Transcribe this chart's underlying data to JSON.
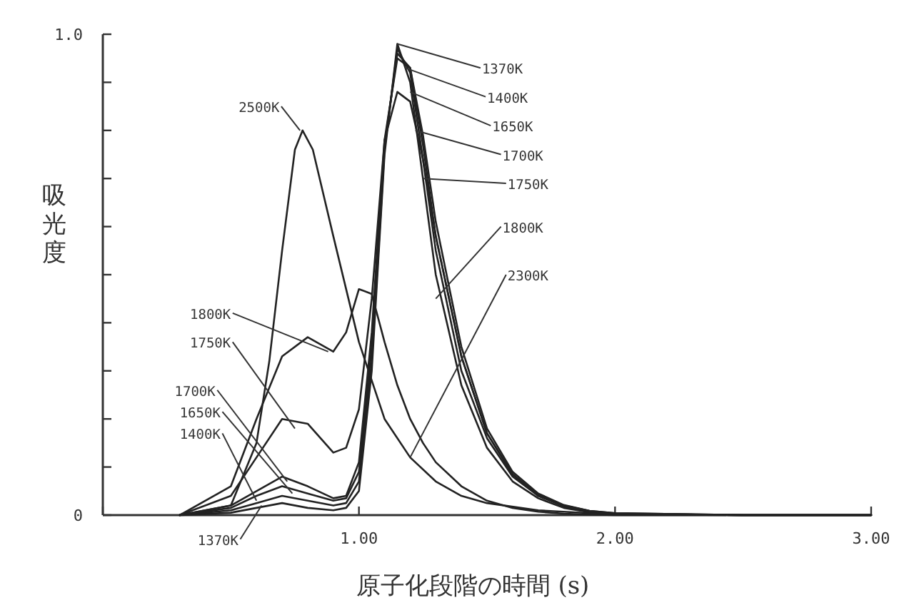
{
  "chart_data": {
    "type": "line",
    "xlabel": "原子化段階の時間 (s)",
    "ylabel": "吸光度",
    "xlim": [
      0,
      3
    ],
    "ylim": [
      0,
      1
    ],
    "xticks": [
      {
        "value": 0,
        "label": null
      },
      {
        "value": 1,
        "label": "1.00"
      },
      {
        "value": 2,
        "label": "2.00"
      },
      {
        "value": 3,
        "label": "3.00"
      }
    ],
    "yticks": [
      {
        "value": 0,
        "label": "0"
      },
      {
        "value": 0.1,
        "label": null
      },
      {
        "value": 0.2,
        "label": null
      },
      {
        "value": 0.3,
        "label": null
      },
      {
        "value": 0.4,
        "label": null
      },
      {
        "value": 0.5,
        "label": null
      },
      {
        "value": 0.6,
        "label": null
      },
      {
        "value": 0.7,
        "label": null
      },
      {
        "value": 0.8,
        "label": null
      },
      {
        "value": 0.9,
        "label": null
      },
      {
        "value": 1,
        "label": "1.0"
      }
    ],
    "grid": false,
    "series": [
      {
        "color": "#222222",
        "x": [
          0.3,
          0.5,
          0.6,
          0.7,
          0.8,
          0.9,
          0.95,
          1.0,
          1.05,
          1.1,
          1.15,
          1.2,
          1.25,
          1.3,
          1.4,
          1.5,
          1.6,
          1.7,
          1.8,
          1.9,
          2.0,
          2.5,
          3.0
        ],
        "values": [
          0,
          0.005,
          0.015,
          0.025,
          0.015,
          0.01,
          0.015,
          0.05,
          0.3,
          0.75,
          0.98,
          0.9,
          0.7,
          0.5,
          0.27,
          0.14,
          0.07,
          0.035,
          0.015,
          0.006,
          0.003,
          0,
          0
        ]
      },
      {
        "color": "#222222",
        "x": [
          0.3,
          0.5,
          0.6,
          0.7,
          0.8,
          0.9,
          0.95,
          1.0,
          1.05,
          1.1,
          1.15,
          1.2,
          1.25,
          1.3,
          1.4,
          1.5,
          1.6,
          1.7,
          1.8,
          1.9,
          2.0,
          2.5,
          3.0
        ],
        "values": [
          0,
          0.01,
          0.025,
          0.04,
          0.03,
          0.02,
          0.025,
          0.07,
          0.32,
          0.76,
          0.97,
          0.92,
          0.74,
          0.55,
          0.3,
          0.16,
          0.08,
          0.04,
          0.018,
          0.008,
          0.003,
          0,
          0
        ]
      },
      {
        "color": "#222222",
        "x": [
          0.3,
          0.5,
          0.6,
          0.7,
          0.8,
          0.9,
          0.95,
          1.0,
          1.05,
          1.1,
          1.15,
          1.2,
          1.25,
          1.3,
          1.4,
          1.5,
          1.6,
          1.7,
          1.8,
          1.9,
          2.0,
          2.5,
          3.0
        ],
        "values": [
          0,
          0.015,
          0.04,
          0.06,
          0.045,
          0.03,
          0.035,
          0.09,
          0.35,
          0.77,
          0.96,
          0.93,
          0.77,
          0.58,
          0.33,
          0.17,
          0.085,
          0.042,
          0.02,
          0.009,
          0.004,
          0,
          0
        ]
      },
      {
        "color": "#222222",
        "x": [
          0.3,
          0.5,
          0.6,
          0.7,
          0.8,
          0.9,
          0.95,
          1.0,
          1.05,
          1.1,
          1.15,
          1.2,
          1.25,
          1.3,
          1.4,
          1.5,
          1.6,
          1.7,
          1.8,
          1.9,
          2.0,
          2.5,
          3.0
        ],
        "values": [
          0,
          0.02,
          0.05,
          0.08,
          0.06,
          0.035,
          0.04,
          0.11,
          0.38,
          0.78,
          0.95,
          0.93,
          0.79,
          0.61,
          0.35,
          0.18,
          0.09,
          0.045,
          0.021,
          0.009,
          0.004,
          0,
          0
        ]
      },
      {
        "color": "#222222",
        "x": [
          0.3,
          0.5,
          0.6,
          0.7,
          0.8,
          0.9,
          0.95,
          1.0,
          1.05,
          1.1,
          1.15,
          1.2,
          1.25,
          1.3,
          1.4,
          1.5,
          1.6,
          1.7,
          1.8,
          1.9,
          2.0,
          2.5,
          3.0
        ],
        "values": [
          0,
          0.04,
          0.12,
          0.2,
          0.19,
          0.13,
          0.14,
          0.22,
          0.45,
          0.78,
          0.88,
          0.86,
          0.74,
          0.58,
          0.33,
          0.17,
          0.085,
          0.04,
          0.02,
          0.008,
          0.003,
          0,
          0
        ]
      },
      {
        "color": "#222222",
        "x": [
          0.3,
          0.5,
          0.6,
          0.7,
          0.8,
          0.9,
          0.95,
          1.0,
          1.05,
          1.1,
          1.15,
          1.2,
          1.25,
          1.3,
          1.4,
          1.5,
          1.6,
          1.7,
          1.8,
          1.9,
          2.0,
          2.5,
          3.0
        ],
        "values": [
          0,
          0.06,
          0.2,
          0.33,
          0.37,
          0.34,
          0.38,
          0.47,
          0.46,
          0.36,
          0.27,
          0.2,
          0.15,
          0.11,
          0.06,
          0.03,
          0.015,
          0.007,
          0.003,
          0.001,
          0,
          0,
          0
        ]
      },
      {
        "color": "#222222",
        "x": [
          0.3,
          0.5,
          0.6,
          0.65,
          0.7,
          0.75,
          0.78,
          0.82,
          0.9,
          1.0,
          1.1,
          1.2,
          1.3,
          1.4,
          1.5,
          1.7,
          1.9,
          2.0,
          2.5,
          3.0
        ],
        "values": [
          0,
          0.02,
          0.15,
          0.32,
          0.55,
          0.76,
          0.8,
          0.76,
          0.58,
          0.36,
          0.2,
          0.12,
          0.07,
          0.04,
          0.025,
          0.01,
          0.004,
          0.002,
          0,
          0
        ]
      }
    ],
    "annotations": [
      {
        "text": "2500K",
        "x": 0.77,
        "y": 0.8
      },
      {
        "text": "1800K",
        "x": 0.88,
        "y": 0.34
      },
      {
        "text": "1750K",
        "x": 0.75,
        "y": 0.18
      },
      {
        "text": "1700K",
        "x": 0.72,
        "y": 0.07
      },
      {
        "text": "1650K",
        "x": 0.74,
        "y": 0.045
      },
      {
        "text": "1400K",
        "x": 0.6,
        "y": 0.03
      },
      {
        "text": "1370K",
        "x": 0.62,
        "y": 0.02
      },
      {
        "text": "1370K",
        "x": 1.15,
        "y": 0.98
      },
      {
        "text": "1400K",
        "x": 1.18,
        "y": 0.93
      },
      {
        "text": "1650K",
        "x": 1.2,
        "y": 0.88
      },
      {
        "text": "1700K",
        "x": 1.22,
        "y": 0.8
      },
      {
        "text": "1750K",
        "x": 1.25,
        "y": 0.7
      },
      {
        "text": "1800K",
        "x": 1.3,
        "y": 0.45
      },
      {
        "text": "2300K",
        "x": 1.2,
        "y": 0.12
      }
    ]
  }
}
